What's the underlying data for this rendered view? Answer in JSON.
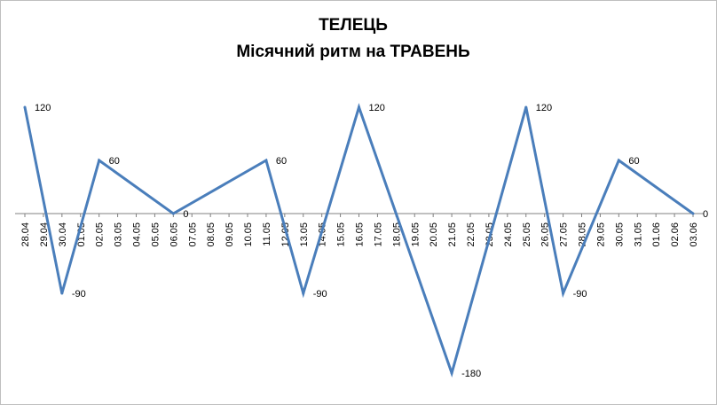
{
  "chart_data": {
    "type": "line",
    "title": [
      "ТЕЛЕЦЬ",
      "Місячний ритм на ТРАВЕНЬ"
    ],
    "categories": [
      "28.04",
      "29.04",
      "30.04",
      "01.05",
      "02.05",
      "03.05",
      "04.05",
      "05.05",
      "06.05",
      "07.05",
      "08.05",
      "09.05",
      "10.05",
      "11.05",
      "12.05",
      "13.05",
      "14.05",
      "15.05",
      "16.05",
      "17.05",
      "18.05",
      "19.05",
      "20.05",
      "21.05",
      "22.05",
      "23.05",
      "24.05",
      "25.05",
      "26.05",
      "27.05",
      "28.05",
      "29.05",
      "30.05",
      "31.05",
      "01.06",
      "02.06",
      "03.06"
    ],
    "points": [
      {
        "x": "28.04",
        "y": 120
      },
      {
        "x": "30.04",
        "y": -90
      },
      {
        "x": "02.05",
        "y": 60
      },
      {
        "x": "06.05",
        "y": 0
      },
      {
        "x": "11.05",
        "y": 60
      },
      {
        "x": "13.05",
        "y": -90
      },
      {
        "x": "16.05",
        "y": 120
      },
      {
        "x": "21.05",
        "y": -180
      },
      {
        "x": "25.05",
        "y": 120
      },
      {
        "x": "27.05",
        "y": -90
      },
      {
        "x": "30.05",
        "y": 60
      },
      {
        "x": "03.06",
        "y": 0
      }
    ],
    "data_labels": [
      "120",
      "-90",
      "60",
      "0",
      "60",
      "-90",
      "120",
      "-180",
      "120",
      "-90",
      "60",
      "0"
    ],
    "ylim": [
      -180,
      120
    ],
    "grid": false,
    "legend": "none",
    "colors": {
      "line": "#4a7ebb",
      "axis": "#808080"
    }
  }
}
